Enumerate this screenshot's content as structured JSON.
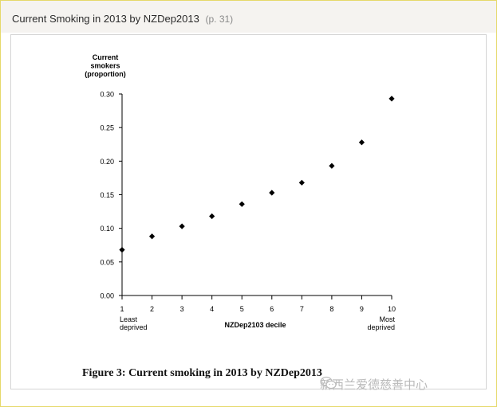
{
  "header": {
    "title": "Current Smoking in 2013 by NZDep2013",
    "page": "(p. 31)"
  },
  "caption": "Figure 3: Current smoking in 2013 by NZDep2013",
  "watermark": "新西兰爱德慈善中心",
  "chart_data": {
    "type": "scatter",
    "ylabel_lines": [
      "Current",
      "smokers",
      "(proportion)"
    ],
    "xlabel": "NZDep2103 decile",
    "x_end_labels": {
      "left": [
        "Least",
        "deprived"
      ],
      "right": [
        "Most",
        "deprived"
      ]
    },
    "xlim": [
      1,
      10
    ],
    "ylim": [
      0,
      0.3
    ],
    "xticks": [
      "1",
      "2",
      "3",
      "4",
      "5",
      "6",
      "7",
      "8",
      "9",
      "10"
    ],
    "yticks": [
      "0.00",
      "0.05",
      "0.10",
      "0.15",
      "0.20",
      "0.25",
      "0.30"
    ],
    "marker": "diamond",
    "color": "#000000",
    "x": [
      1,
      2,
      3,
      4,
      5,
      6,
      7,
      8,
      9,
      10
    ],
    "y": [
      0.068,
      0.088,
      0.103,
      0.118,
      0.136,
      0.153,
      0.168,
      0.193,
      0.228,
      0.293
    ]
  }
}
